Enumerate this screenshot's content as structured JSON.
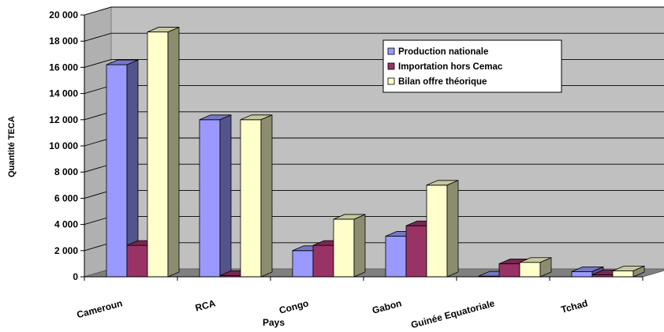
{
  "chart_data": {
    "type": "bar",
    "title": "",
    "xlabel": "Pays",
    "ylabel": "Quantité TECA",
    "ylim": [
      0,
      20000
    ],
    "yticks": [
      0,
      2000,
      4000,
      6000,
      8000,
      10000,
      12000,
      14000,
      16000,
      18000,
      20000
    ],
    "ytick_labels": [
      "0",
      "2 000",
      "4 000",
      "6 000",
      "8 000",
      "10 000",
      "12 000",
      "14 000",
      "16 000",
      "18 000",
      "20 000"
    ],
    "categories": [
      "Cameroun",
      "RCA",
      "Congo",
      "Gabon",
      "Guinée Equatoriale",
      "Tchad"
    ],
    "series": [
      {
        "name": "Production nationale",
        "color": "#9999ff",
        "values": [
          16200,
          12000,
          2000,
          3100,
          50,
          400
        ]
      },
      {
        "name": "Importation hors Cemac",
        "color": "#993366",
        "values": [
          2400,
          100,
          2400,
          3900,
          1000,
          150
        ]
      },
      {
        "name": "Bilan offre théorique",
        "color": "#ffffcc",
        "values": [
          18700,
          12000,
          4400,
          7000,
          1100,
          450
        ]
      }
    ],
    "grid": true,
    "legend_position": "top-right",
    "three_d": true
  }
}
